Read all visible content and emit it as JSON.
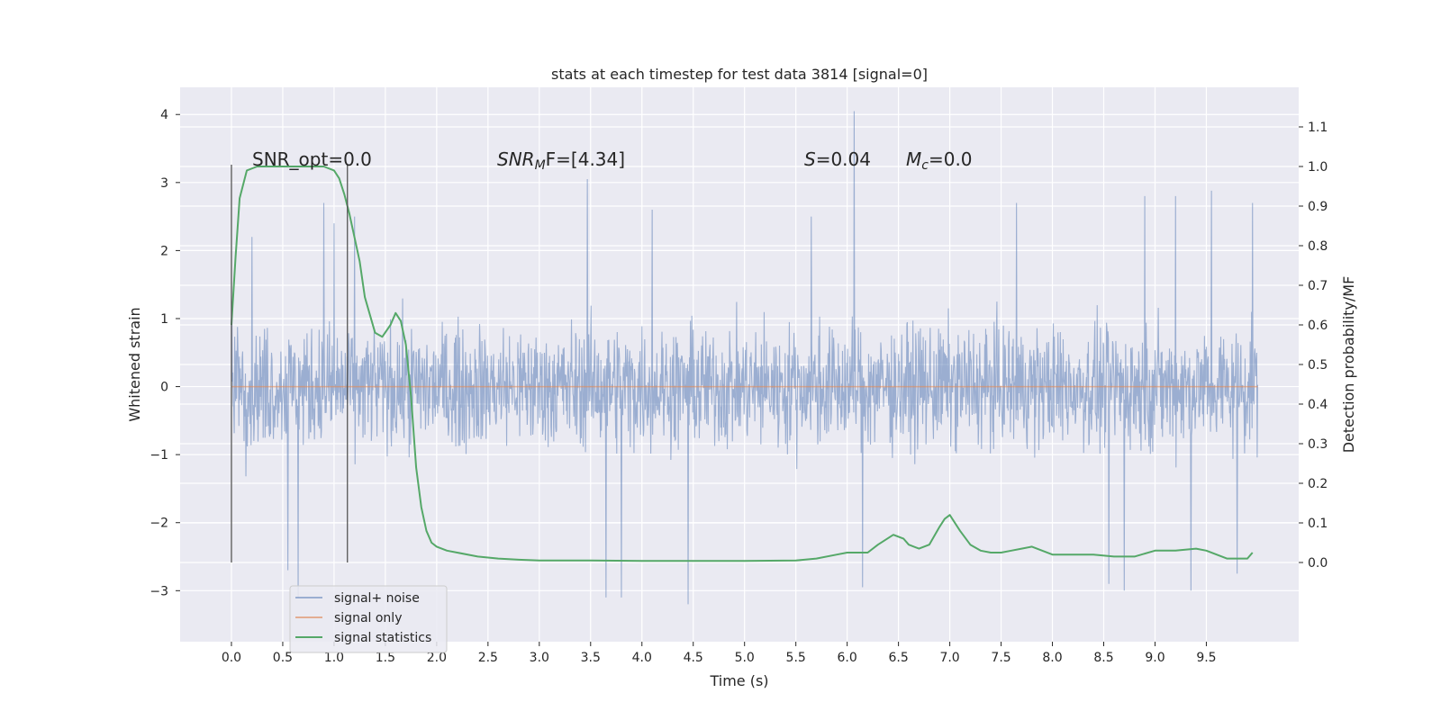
{
  "chart_data": {
    "type": "line",
    "title": "stats at each timestep for test data 3814 [signal=0]",
    "xlabel": "Time (s)",
    "ylabel": "Whitened strain",
    "y2label": "Detection probability/MF",
    "xlim": [
      -0.5,
      10.4
    ],
    "ylim": [
      -3.75,
      4.4
    ],
    "y2lim": [
      -0.2,
      1.2
    ],
    "x_ticks": [
      "0.0",
      "0.5",
      "1.0",
      "1.5",
      "2.0",
      "2.5",
      "3.0",
      "3.5",
      "4.0",
      "4.5",
      "5.0",
      "5.5",
      "6.0",
      "6.5",
      "7.0",
      "7.5",
      "8.0",
      "8.5",
      "9.0",
      "9.5"
    ],
    "y_ticks": [
      "−3",
      "−2",
      "−1",
      "0",
      "1",
      "2",
      "3",
      "4"
    ],
    "y2_ticks": [
      "0.0",
      "0.1",
      "0.2",
      "0.3",
      "0.4",
      "0.5",
      "0.6",
      "0.7",
      "0.8",
      "0.9",
      "1.0",
      "1.1"
    ],
    "grid": true,
    "legend_position": "lower-left",
    "annotations": {
      "snr_opt": "SNR_opt=0.0",
      "snr_mf": "SNR",
      "snr_mf_sub": "M",
      "snr_mf_tail": "F=[4.34]",
      "s_stat": "S",
      "s_stat_tail": "=0.04",
      "mc": "M",
      "mc_sub": "c",
      "mc_tail": "=0.0"
    },
    "vlines_x": [
      0.0,
      1.13
    ],
    "series": [
      {
        "name": "signal+ noise",
        "axis": "left",
        "color": "#4c72b0",
        "alpha": 0.5,
        "x_range": [
          0.0,
          10.0
        ],
        "envelope_typical": [
          -1.5,
          1.5
        ],
        "peaks_high": [
          [
            0.2,
            2.2
          ],
          [
            0.9,
            2.7
          ],
          [
            1.0,
            2.4
          ],
          [
            1.2,
            2.5
          ],
          [
            3.47,
            3.05
          ],
          [
            4.1,
            2.6
          ],
          [
            5.65,
            2.5
          ],
          [
            6.07,
            4.05
          ],
          [
            7.65,
            2.7
          ],
          [
            8.9,
            2.8
          ],
          [
            9.2,
            2.8
          ],
          [
            9.55,
            2.88
          ],
          [
            9.95,
            2.7
          ]
        ],
        "peaks_low": [
          [
            0.55,
            -2.7
          ],
          [
            0.65,
            -3.1
          ],
          [
            3.65,
            -3.1
          ],
          [
            3.8,
            -3.1
          ],
          [
            4.45,
            -3.2
          ],
          [
            6.15,
            -2.95
          ],
          [
            8.55,
            -2.9
          ],
          [
            8.7,
            -3.0
          ],
          [
            9.35,
            -3.0
          ],
          [
            9.8,
            -2.75
          ]
        ]
      },
      {
        "name": "signal only",
        "axis": "left",
        "color": "#dd8452",
        "x": [
          0.0,
          10.0
        ],
        "y": [
          0.0,
          0.0
        ]
      },
      {
        "name": "signal statistics",
        "axis": "right",
        "color": "#55a868",
        "x": [
          0.0,
          0.04,
          0.08,
          0.15,
          0.25,
          0.4,
          0.6,
          0.8,
          0.9,
          1.0,
          1.05,
          1.1,
          1.15,
          1.2,
          1.25,
          1.3,
          1.4,
          1.47,
          1.55,
          1.6,
          1.65,
          1.7,
          1.75,
          1.8,
          1.85,
          1.9,
          1.95,
          2.0,
          2.1,
          2.2,
          2.4,
          2.6,
          2.8,
          3.0,
          3.5,
          4.0,
          4.5,
          5.0,
          5.5,
          5.7,
          5.9,
          6.0,
          6.2,
          6.3,
          6.45,
          6.55,
          6.6,
          6.7,
          6.8,
          6.9,
          6.95,
          7.0,
          7.1,
          7.2,
          7.3,
          7.4,
          7.5,
          7.6,
          7.7,
          7.8,
          7.9,
          8.0,
          8.2,
          8.4,
          8.6,
          8.8,
          9.0,
          9.2,
          9.4,
          9.5,
          9.6,
          9.7,
          9.8,
          9.9,
          9.95
        ],
        "y": [
          0.6,
          0.77,
          0.92,
          0.99,
          1.0,
          1.0,
          1.0,
          1.0,
          1.0,
          0.99,
          0.97,
          0.93,
          0.88,
          0.82,
          0.76,
          0.67,
          0.58,
          0.57,
          0.6,
          0.63,
          0.61,
          0.55,
          0.42,
          0.24,
          0.14,
          0.08,
          0.05,
          0.04,
          0.03,
          0.025,
          0.015,
          0.01,
          0.007,
          0.005,
          0.005,
          0.004,
          0.004,
          0.004,
          0.005,
          0.01,
          0.02,
          0.025,
          0.025,
          0.045,
          0.07,
          0.06,
          0.045,
          0.035,
          0.045,
          0.09,
          0.11,
          0.12,
          0.08,
          0.045,
          0.03,
          0.025,
          0.025,
          0.03,
          0.035,
          0.04,
          0.03,
          0.02,
          0.02,
          0.02,
          0.015,
          0.015,
          0.03,
          0.03,
          0.035,
          0.03,
          0.02,
          0.01,
          0.01,
          0.01,
          0.025
        ]
      }
    ]
  }
}
